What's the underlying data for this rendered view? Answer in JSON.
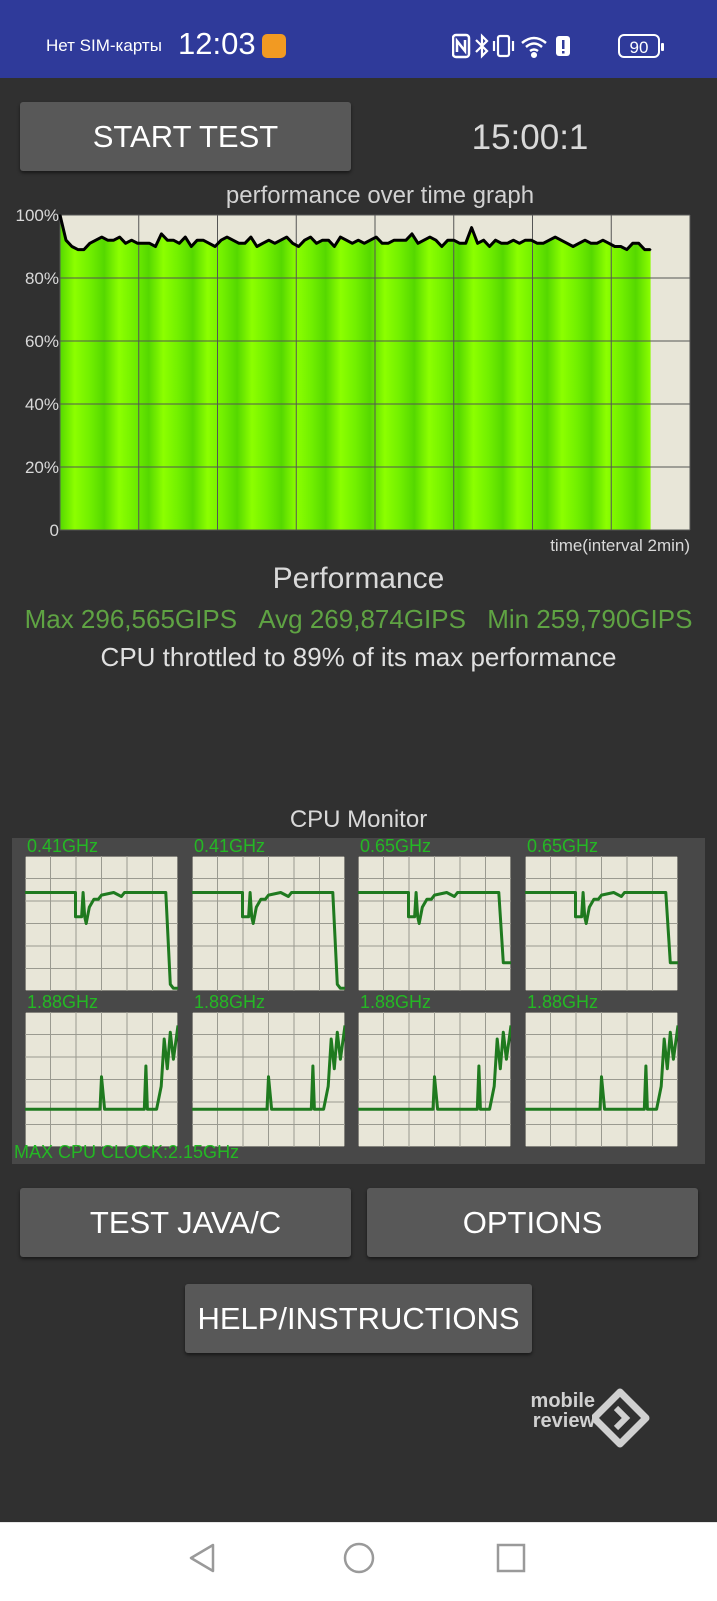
{
  "status_bar": {
    "carrier": "Нет SIM-карты",
    "time": "12:03",
    "battery": "90",
    "icons": [
      "app-notification-icon",
      "nfc-icon",
      "bluetooth-icon",
      "vibrate-icon",
      "wifi-6-icon",
      "alert-icon",
      "battery-icon"
    ]
  },
  "controls": {
    "start_test": "START TEST",
    "timer": "15:00:1",
    "test_java_c": "TEST JAVA/C",
    "options": "OPTIONS",
    "help": "HELP/INSTRUCTIONS"
  },
  "chart_data": {
    "type": "area",
    "title": "performance over time graph",
    "xlabel": "time(interval 2min)",
    "ylabel": "",
    "y_ticks": [
      "100%",
      "80%",
      "60%",
      "40%",
      "20%",
      "0"
    ],
    "ylim": [
      0,
      100
    ],
    "x_range_minutes": [
      0,
      16
    ],
    "test_minutes": 15,
    "grid": true,
    "colors": {
      "area": "#7dff00",
      "line": "#000000",
      "plot_bg": "#e8e6d8",
      "grid": "#555555"
    },
    "series": [
      {
        "values": [
          100,
          92,
          90,
          89,
          89,
          91,
          92,
          93,
          92,
          92,
          93,
          91,
          92,
          91,
          91,
          91,
          90,
          94,
          92,
          92,
          91,
          93,
          90,
          92,
          92,
          91,
          90,
          92,
          93,
          92,
          91,
          91,
          93,
          90,
          91,
          92,
          91,
          92,
          93,
          91,
          90,
          92,
          93,
          91,
          92,
          92,
          90,
          93,
          92,
          91,
          92,
          91,
          92,
          93,
          91,
          91,
          92,
          92,
          92,
          94,
          91,
          92,
          93,
          92,
          90,
          92,
          92,
          91,
          91,
          96,
          91,
          92,
          90,
          92,
          91,
          91,
          92,
          91,
          92,
          92,
          91,
          91,
          92,
          93,
          92,
          91,
          90,
          91,
          92,
          91,
          91,
          92,
          91,
          90,
          90,
          89,
          91,
          91,
          89,
          89
        ]
      }
    ]
  },
  "performance": {
    "title": "Performance",
    "max": "Max 296,565GIPS",
    "avg": "Avg 269,874GIPS",
    "min": "Min 259,790GIPS",
    "throttle_text": "CPU throttled to 89% of its max performance"
  },
  "cpu_monitor": {
    "title": "CPU Monitor",
    "max_clock": "MAX CPU CLOCK:2.15GHz",
    "cores": [
      {
        "freq": "0.41GHz",
        "pattern": "little",
        "drop": 0.95
      },
      {
        "freq": "0.41GHz",
        "pattern": "little",
        "drop": 0.95
      },
      {
        "freq": "0.65GHz",
        "pattern": "little",
        "drop": 0.79
      },
      {
        "freq": "0.65GHz",
        "pattern": "little",
        "drop": 0.79
      },
      {
        "freq": "1.88GHz",
        "pattern": "big"
      },
      {
        "freq": "1.88GHz",
        "pattern": "big"
      },
      {
        "freq": "1.88GHz",
        "pattern": "big"
      },
      {
        "freq": "1.88GHz",
        "pattern": "big"
      }
    ],
    "line_color": "#1f7a1f",
    "bg": "#e8e6d8"
  },
  "watermark": {
    "line1": "mobile",
    "line2": "review"
  },
  "navigation": [
    "back-icon",
    "home-icon",
    "recents-icon"
  ]
}
